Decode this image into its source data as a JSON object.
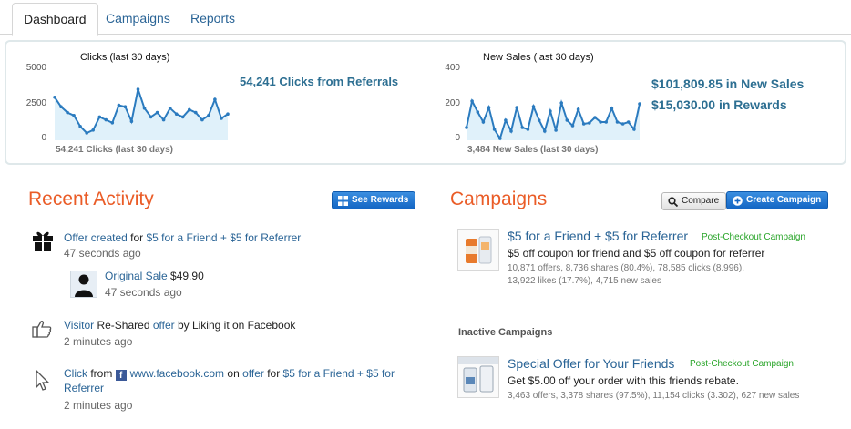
{
  "tabs": [
    {
      "label": "Dashboard",
      "active": true
    },
    {
      "label": "Campaigns",
      "active": false
    },
    {
      "label": "Reports",
      "active": false
    }
  ],
  "charts": {
    "clicks": {
      "title": "Clicks (last 30 days)",
      "subtitle": "54,241 Clicks (last 30 days)",
      "yticks": [
        "5000",
        "2500",
        "0"
      ],
      "stat": "54,241 Clicks from Referrals"
    },
    "sales": {
      "title": "New Sales (last 30 days)",
      "subtitle": "3,484 New Sales (last 30 days)",
      "yticks": [
        "400",
        "200",
        "0"
      ],
      "stat1": "$101,809.85 in New Sales",
      "stat2": "$15,030.00 in Rewards"
    }
  },
  "chart_data": [
    {
      "type": "area",
      "title": "Clicks (last 30 days)",
      "ylim": [
        0,
        5000
      ],
      "x": [
        1,
        2,
        3,
        4,
        5,
        6,
        7,
        8,
        9,
        10,
        11,
        12,
        13,
        14,
        15,
        16,
        17,
        18,
        19,
        20,
        21,
        22,
        23,
        24,
        25,
        26,
        27,
        28
      ],
      "values": [
        2950,
        2300,
        1900,
        1700,
        950,
        500,
        700,
        1600,
        1400,
        1200,
        2400,
        2300,
        1300,
        3500,
        2200,
        1600,
        1900,
        1400,
        2200,
        1800,
        1600,
        2100,
        1900,
        1400,
        1700,
        2800,
        1500,
        1800
      ],
      "color": "#2b7bbf",
      "fill": "#e0f1fa"
    },
    {
      "type": "area",
      "title": "New Sales (last 30 days)",
      "ylim": [
        0,
        400
      ],
      "x": [
        1,
        2,
        3,
        4,
        5,
        6,
        7,
        8,
        9,
        10,
        11,
        12,
        13,
        14,
        15,
        16,
        17,
        18,
        19,
        20,
        21,
        22,
        23,
        24,
        25,
        26,
        27,
        28,
        29,
        30,
        31,
        32
      ],
      "values": [
        70,
        215,
        155,
        100,
        180,
        60,
        10,
        110,
        50,
        180,
        70,
        60,
        185,
        110,
        50,
        160,
        55,
        205,
        110,
        80,
        170,
        90,
        95,
        125,
        100,
        100,
        175,
        100,
        90,
        100,
        60,
        200
      ],
      "color": "#2b7bbf",
      "fill": "#e0f1fa"
    }
  ],
  "activity": {
    "title": "Recent Activity",
    "see_rewards": "See Rewards",
    "items": [
      {
        "icon": "gift-icon",
        "p1": "Offer created",
        "p2": " for ",
        "p3": "$5 for a Friend + $5 for Referrer",
        "time": "47 seconds ago"
      },
      {
        "icon": "avatar",
        "p1": "Original Sale",
        "p2": " $49.90",
        "time": "47 seconds ago"
      },
      {
        "icon": "thumbs-up-icon",
        "p1": "Visitor",
        "p2": " Re-Shared ",
        "p3": "offer",
        "p4": " by Liking it on Facebook",
        "time": "2 minutes ago"
      },
      {
        "icon": "cursor-icon",
        "p1": "Click",
        "p2": " from ",
        "p3": "www.facebook.com",
        "p4": " on ",
        "p5": "offer",
        "p6": " for ",
        "p7": "$5 for a Friend + $5 for Referrer",
        "time": "2 minutes ago"
      }
    ]
  },
  "campaigns": {
    "title": "Campaigns",
    "compare": "Compare",
    "create": "Create Campaign",
    "active": {
      "name": "$5 for a Friend + $5 for Referrer",
      "tag": "Post-Checkout Campaign",
      "desc": "$5 off coupon for friend and $5 off coupon for referrer",
      "stats1": "10,871 offers, 8,736 shares (80.4%), 78,585 clicks (8.996),",
      "stats2": "13,922 likes (17.7%), 4,715 new sales"
    },
    "inactive_heading": "Inactive Campaigns",
    "inactive": {
      "name": "Special Offer for Your Friends",
      "tag": "Post-Checkout Campaign",
      "desc": "Get $5.00 off your order with this friends rebate.",
      "stats": "3,463 offers, 3,378 shares (97.5%), 11,154 clicks (3.302), 627 new sales"
    }
  },
  "colors": {
    "accent_orange": "#ea5c27",
    "link_blue": "#2a6496",
    "stat_blue": "#2d6f92",
    "button_blue": "#1466c4",
    "tag_green": "#2aa52a"
  }
}
